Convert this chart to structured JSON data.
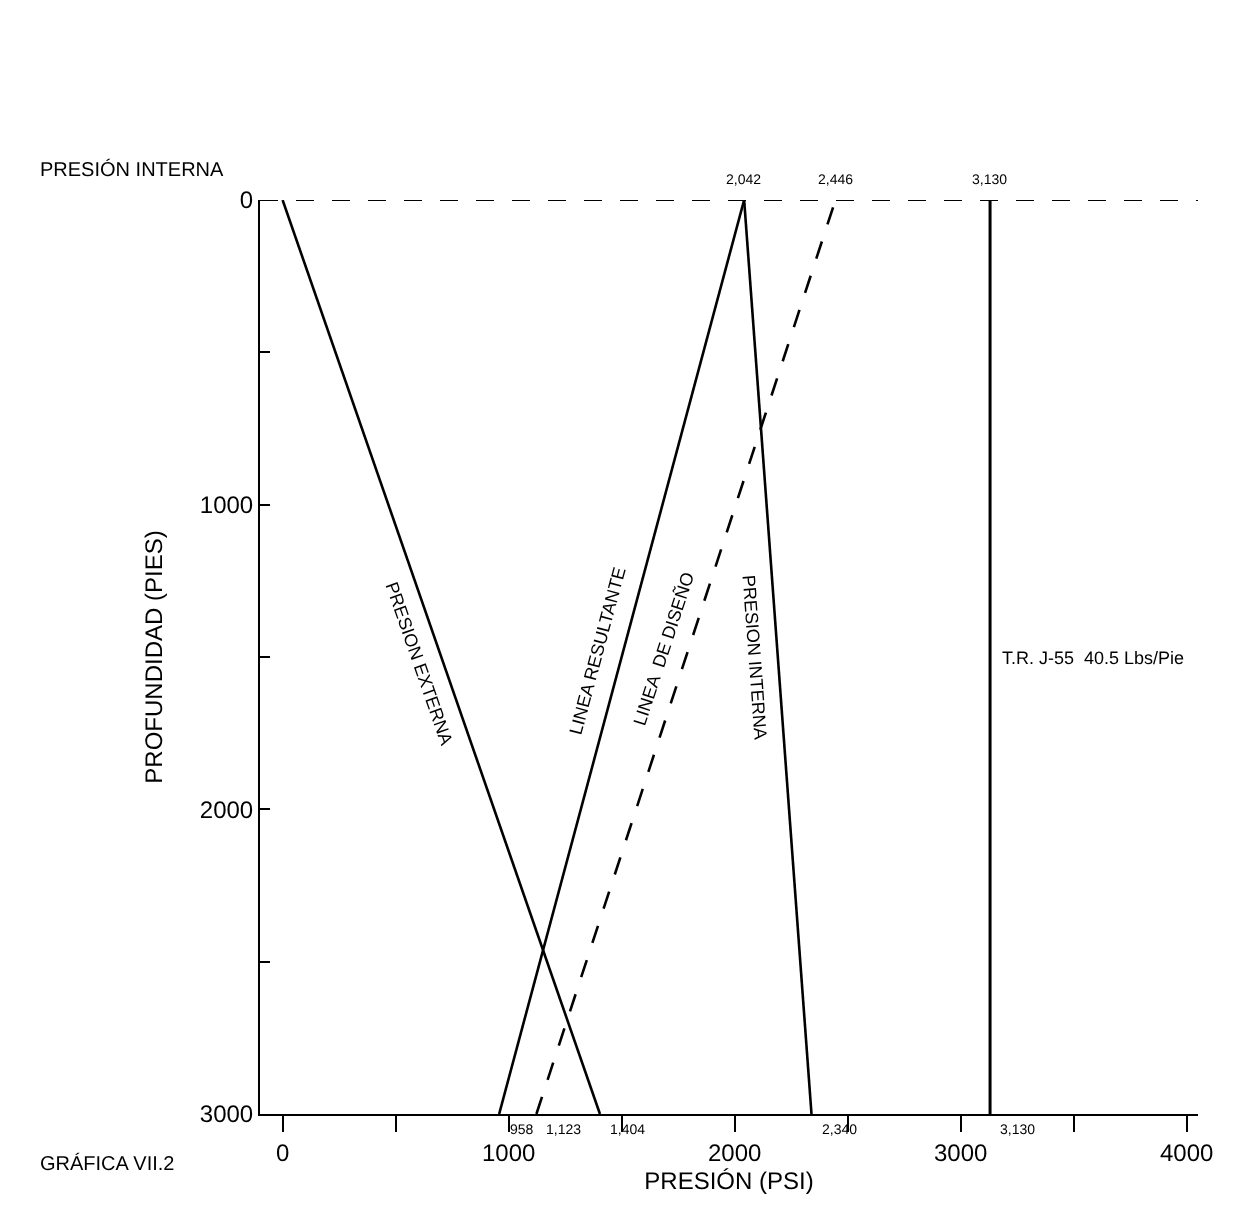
{
  "chart_data": {
    "type": "line",
    "xlabel": "PRESIÓN (PSI)",
    "ylabel": "PROFUNDIDAD (PIES)",
    "series": [
      {
        "name": "PRESION EXTERNA",
        "color": "#000000",
        "x": [
          0,
          1404
        ],
        "values": [
          0,
          3000
        ],
        "line_style": "solid"
      },
      {
        "name": "LINEA RESULTANTE",
        "color": "#000000",
        "x": [
          958,
          2042
        ],
        "values": [
          3000,
          0
        ],
        "line_style": "solid"
      },
      {
        "name": "LINEA  DE DISEÑO",
        "color": "#000000",
        "x": [
          1123,
          2446
        ],
        "values": [
          3000,
          0
        ],
        "line_style": "dashed"
      },
      {
        "name": "PRESION INTERNA",
        "color": "#000000",
        "x": [
          2042,
          2340
        ],
        "values": [
          0,
          3000
        ],
        "line_style": "solid"
      }
    ],
    "ref_lines": [
      {
        "axis": "x",
        "value": 3130,
        "label": "T.R. J-55  40.5 Lbs/Pie",
        "color": "#000000",
        "line_style": "solid"
      },
      {
        "axis": "y",
        "value": 0,
        "label": null,
        "color": "#000000",
        "line_style": "dashed"
      }
    ],
    "xlim": [
      -100,
      4050
    ],
    "ylim": [
      3000,
      0
    ],
    "xticks": [
      0,
      {
        "value": 500,
        "label": null
      },
      1000,
      {
        "value": 1500,
        "label": null
      },
      2000,
      {
        "value": 2500,
        "label": null
      },
      3000,
      {
        "value": 3500,
        "label": null
      },
      4000
    ],
    "yticks": [
      0,
      {
        "value": 500,
        "label": null
      },
      1000,
      {
        "value": 1500,
        "label": null
      },
      2000,
      {
        "value": 2500,
        "label": null
      },
      3000
    ],
    "legend": false,
    "marker": "none",
    "annotations": [
      "PRESIÓN INTERNA",
      "GRÁFICA VII.2",
      {
        "text": "2,042",
        "x": 2042,
        "y": 0
      },
      {
        "text": "2,446",
        "x": 2446,
        "y": 0
      },
      {
        "text": "3,130",
        "x": 3130,
        "y": 0
      },
      {
        "text": "958",
        "x": 958,
        "y": 3000
      },
      {
        "text": "1,123",
        "x": 1123,
        "y": 3000
      },
      {
        "text": "1,404",
        "x": 1404,
        "y": 3000
      },
      {
        "text": "2,340",
        "x": 2340,
        "y": 3000
      },
      {
        "text": "3,130",
        "x": 3130,
        "y": 3000
      }
    ]
  }
}
